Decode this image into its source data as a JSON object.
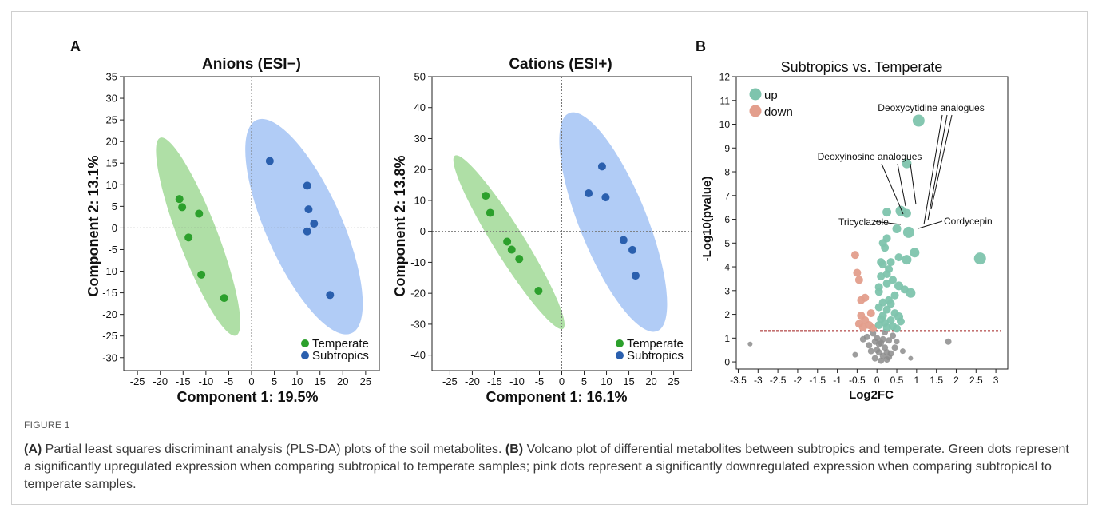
{
  "figure": {
    "label": "FIGURE 1",
    "caption_a_tag": "(A)",
    "caption_a_text": " Partial least squares discriminant analysis (PLS-DA) plots of the soil metabolites. ",
    "caption_b_tag": "(B)",
    "caption_b_text": " Volcano plot of differential metabolites between subtropics and temperate. Green dots represent a significantly upregulated expression when comparing subtropical to temperate samples; pink dots represent a significantly downregulated expression when comparing subtropical to temperate samples.",
    "panel_a_letter": "A",
    "panel_b_letter": "B"
  },
  "colors": {
    "temperate": "#2ca02c",
    "subtropics": "#2a5fae",
    "temperate_ellipse": "#a6dc9c",
    "subtropics_ellipse": "#a9c6f5",
    "up": "#7ec4ad",
    "down": "#e39e8c",
    "ns": "#8c8c8c",
    "threshold": "#a01c1c"
  },
  "chart_data": [
    {
      "type": "scatter",
      "title": "Anions (ESI−)",
      "xlabel": "Component 1: 19.5%",
      "ylabel": "Component 2: 13.1%",
      "xlim": [
        -28,
        28
      ],
      "ylim": [
        -33,
        35
      ],
      "xticks": [
        -25,
        -20,
        -15,
        -10,
        -5,
        0,
        5,
        10,
        15,
        20,
        25
      ],
      "yticks": [
        -30,
        -25,
        -20,
        -15,
        -10,
        -5,
        0,
        5,
        10,
        15,
        20,
        25,
        30,
        35
      ],
      "legend": "bottom-right",
      "ellipses": [
        {
          "group": "Temperate",
          "center": [
            -11.7,
            -2.0
          ],
          "semi_axes": [
            4.3,
            24.5
          ],
          "angle_deg": -21
        },
        {
          "group": "Subtropics",
          "center": [
            11.5,
            0.3
          ],
          "semi_axes": [
            8.3,
            27.0
          ],
          "angle_deg": -24
        }
      ],
      "series": [
        {
          "name": "Temperate",
          "x": [
            -15.8,
            -15.2,
            -11.5,
            -13.8,
            -11.0,
            -6.0
          ],
          "y": [
            6.7,
            4.8,
            3.3,
            -2.2,
            -10.8,
            -16.2
          ]
        },
        {
          "name": "Subtropics",
          "x": [
            4.0,
            12.2,
            12.5,
            13.7,
            12.2,
            17.2
          ],
          "y": [
            15.5,
            9.8,
            4.3,
            1.0,
            -0.8,
            -15.5
          ]
        }
      ]
    },
    {
      "type": "scatter",
      "title": "Cations (ESI+)",
      "xlabel": "Component 1: 16.1%",
      "ylabel": "Component 2: 13.8%",
      "xlim": [
        -29,
        29
      ],
      "ylim": [
        -45,
        50
      ],
      "xticks": [
        -25,
        -20,
        -15,
        -10,
        -5,
        0,
        5,
        10,
        15,
        20,
        25
      ],
      "yticks": [
        -40,
        -30,
        -20,
        -10,
        0,
        10,
        20,
        30,
        40,
        50
      ],
      "legend": "bottom-right",
      "ellipses": [
        {
          "group": "Temperate",
          "center": [
            -11.8,
            -3.5
          ],
          "semi_axes": [
            3.4,
            33.0
          ],
          "angle_deg": -32
        },
        {
          "group": "Subtropics",
          "center": [
            11.5,
            3.0
          ],
          "semi_axes": [
            7.5,
            38.0
          ],
          "angle_deg": -22
        }
      ],
      "series": [
        {
          "name": "Temperate",
          "x": [
            -17.0,
            -16.0,
            -12.2,
            -11.2,
            -9.5,
            -5.2
          ],
          "y": [
            11.5,
            6.0,
            -3.3,
            -5.9,
            -8.9,
            -19.2
          ]
        },
        {
          "name": "Subtropics",
          "x": [
            9.0,
            6.0,
            9.8,
            13.8,
            15.8,
            16.5
          ],
          "y": [
            21.0,
            12.3,
            11.0,
            -2.8,
            -6.0,
            -14.3
          ]
        }
      ]
    },
    {
      "type": "scatter",
      "title": "Subtropics vs. Temperate",
      "xlabel": "Log2FC",
      "ylabel": "-Log10(pvalue)",
      "xlim": [
        -3.55,
        3.3
      ],
      "ylim": [
        -0.3,
        12
      ],
      "xticks": [
        -3.5,
        -3,
        -2.5,
        -2,
        -1.5,
        -1,
        -0.5,
        0,
        0.5,
        1,
        1.5,
        2,
        2.5,
        3
      ],
      "yticks": [
        0,
        1,
        2,
        3,
        4,
        5,
        6,
        7,
        8,
        9,
        10,
        11,
        12
      ],
      "threshold_y": 1.3,
      "legend": "top-left",
      "legend_entries": [
        "up",
        "down"
      ],
      "annotations": [
        {
          "text": "Deoxycytidine analogues"
        },
        {
          "text": "Deoxyinosine analogues"
        },
        {
          "text": "Tricyclazole"
        },
        {
          "text": "Cordycepin"
        }
      ],
      "series": [
        {
          "name": "up",
          "points": [
            [
              1.05,
              10.15,
              7.5
            ],
            [
              0.75,
              8.35,
              6
            ],
            [
              2.6,
              4.35,
              7.5
            ],
            [
              0.25,
              6.3,
              5.5
            ],
            [
              0.6,
              6.35,
              6.5
            ],
            [
              0.75,
              6.25,
              5.5
            ],
            [
              0.5,
              5.6,
              5.5
            ],
            [
              0.8,
              5.45,
              7
            ],
            [
              0.25,
              5.2,
              5
            ],
            [
              0.15,
              5.0,
              5
            ],
            [
              0.2,
              4.8,
              5
            ],
            [
              0.55,
              4.4,
              5
            ],
            [
              0.95,
              4.6,
              6
            ],
            [
              0.75,
              4.3,
              6
            ],
            [
              0.35,
              4.2,
              5
            ],
            [
              0.1,
              4.2,
              5
            ],
            [
              0.15,
              4.1,
              5
            ],
            [
              0.25,
              3.7,
              5
            ],
            [
              0.1,
              3.6,
              5
            ],
            [
              0.4,
              3.45,
              5
            ],
            [
              0.25,
              3.3,
              5
            ],
            [
              0.55,
              3.2,
              5.5
            ],
            [
              0.05,
              3.15,
              5
            ],
            [
              0.7,
              3.05,
              5
            ],
            [
              0.85,
              2.9,
              6
            ],
            [
              0.05,
              2.95,
              5
            ],
            [
              0.3,
              2.6,
              5
            ],
            [
              0.15,
              2.5,
              5
            ],
            [
              0.35,
              2.45,
              5
            ],
            [
              0.05,
              2.3,
              5
            ],
            [
              0.25,
              2.2,
              5
            ],
            [
              0.45,
              2.05,
              5
            ],
            [
              0.15,
              1.95,
              5
            ],
            [
              0.55,
              1.9,
              5.5
            ],
            [
              0.1,
              1.8,
              5
            ],
            [
              0.35,
              1.75,
              5
            ],
            [
              0.2,
              1.65,
              5
            ],
            [
              0.05,
              1.55,
              5
            ],
            [
              0.4,
              1.5,
              5
            ],
            [
              0.25,
              1.45,
              5
            ],
            [
              0.5,
              1.4,
              5
            ],
            [
              0.45,
              2.8,
              5
            ],
            [
              0.6,
              1.7,
              5
            ],
            [
              0.3,
              3.9,
              5
            ]
          ]
        },
        {
          "name": "down",
          "points": [
            [
              -0.55,
              4.5,
              5
            ],
            [
              -0.5,
              3.75,
              5
            ],
            [
              -0.45,
              3.45,
              5
            ],
            [
              -0.3,
              2.7,
              5
            ],
            [
              -0.4,
              2.6,
              5
            ],
            [
              -0.15,
              2.05,
              5
            ],
            [
              -0.4,
              1.95,
              5
            ],
            [
              -0.3,
              1.75,
              5
            ],
            [
              -0.45,
              1.6,
              5
            ],
            [
              -0.2,
              1.55,
              5
            ],
            [
              -0.35,
              1.45,
              5
            ],
            [
              -0.1,
              1.42,
              5
            ]
          ]
        },
        {
          "name": "ns",
          "points": [
            [
              -3.2,
              0.75,
              3
            ],
            [
              1.8,
              0.85,
              4
            ],
            [
              -0.55,
              0.3,
              3.5
            ],
            [
              -0.35,
              0.95,
              4
            ],
            [
              0.65,
              0.45,
              3.5
            ],
            [
              0.85,
              0.15,
              3
            ],
            [
              -0.1,
              1.2,
              4
            ],
            [
              0.0,
              1.0,
              4
            ],
            [
              0.1,
              0.8,
              4
            ],
            [
              0.2,
              0.6,
              4
            ],
            [
              0.05,
              0.4,
              4
            ],
            [
              0.15,
              0.25,
              4
            ],
            [
              -0.05,
              0.15,
              4
            ],
            [
              0.25,
              0.1,
              4
            ],
            [
              0.3,
              0.9,
              4
            ],
            [
              0.4,
              1.1,
              4
            ],
            [
              -0.2,
              0.7,
              4
            ],
            [
              0.0,
              0.5,
              4
            ],
            [
              0.35,
              0.35,
              4
            ],
            [
              0.1,
              0.05,
              4
            ],
            [
              -0.15,
              0.45,
              4
            ],
            [
              0.2,
              1.25,
              4
            ],
            [
              0.45,
              0.6,
              4
            ],
            [
              0.05,
              0.75,
              4
            ],
            [
              -0.25,
              1.05,
              4
            ],
            [
              0.15,
              0.95,
              4
            ],
            [
              0.3,
              0.2,
              4
            ],
            [
              -0.05,
              0.85,
              4
            ],
            [
              0.5,
              0.85,
              3.5
            ],
            [
              0.25,
              0.4,
              4
            ]
          ]
        }
      ]
    }
  ]
}
